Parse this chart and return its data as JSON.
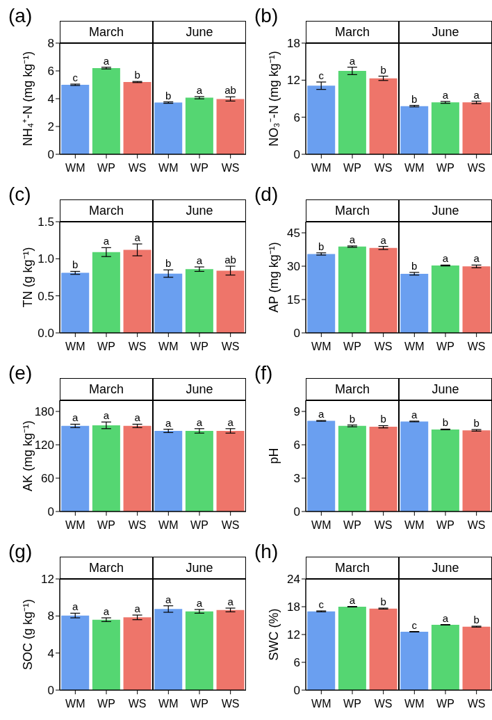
{
  "chart_data": [
    {
      "type": "bar",
      "title": "March",
      "annotations": [
        "(a)"
      ],
      "ylabel": "NH₄⁺-N (mg kg⁻¹)",
      "categories": [
        "WM",
        "WP",
        "WS"
      ],
      "values": [
        5.0,
        6.2,
        5.2
      ],
      "errors": [
        0.05,
        0.06,
        0.04
      ],
      "value_labels": [
        "c",
        "a",
        "b"
      ],
      "colors": [
        "#6a9ff0",
        "#55d672",
        "#ee756a"
      ],
      "ylim": [
        0,
        8
      ],
      "yticks": [
        0,
        2,
        4,
        6,
        8
      ]
    },
    {
      "type": "bar",
      "title": "June",
      "categories": [
        "WM",
        "WP",
        "WS"
      ],
      "values": [
        3.72,
        4.07,
        3.98
      ],
      "errors": [
        0.05,
        0.08,
        0.15
      ],
      "value_labels": [
        "b",
        "a",
        "ab"
      ],
      "colors": [
        "#6a9ff0",
        "#55d672",
        "#ee756a"
      ],
      "ylim": [
        0,
        8
      ],
      "tick_labels": "x"
    },
    {
      "type": "bar",
      "title": "March",
      "annotations": [
        "(b)"
      ],
      "ylabel": "NO₃⁻-N (mg kg⁻¹)",
      "categories": [
        "WM",
        "WP",
        "WS"
      ],
      "values": [
        11.1,
        13.5,
        12.3
      ],
      "errors": [
        0.6,
        0.6,
        0.35
      ],
      "value_labels": [
        "c",
        "a",
        "b"
      ],
      "colors": [
        "#6a9ff0",
        "#55d672",
        "#ee756a"
      ],
      "ylim": [
        0,
        18
      ],
      "yticks": [
        0,
        6,
        12,
        18
      ]
    },
    {
      "type": "bar",
      "title": "June",
      "categories": [
        "WM",
        "WP",
        "WS"
      ],
      "values": [
        7.8,
        8.4,
        8.4
      ],
      "errors": [
        0.12,
        0.15,
        0.2
      ],
      "value_labels": [
        "b",
        "a",
        "a"
      ],
      "colors": [
        "#6a9ff0",
        "#55d672",
        "#ee756a"
      ],
      "ylim": [
        0,
        18
      ],
      "tick_labels": "x"
    },
    {
      "type": "bar",
      "title": "March",
      "annotations": [
        "(c)"
      ],
      "ylabel": "TN (g kg⁻¹)",
      "categories": [
        "WM",
        "WP",
        "WS"
      ],
      "values": [
        0.81,
        1.09,
        1.12
      ],
      "errors": [
        0.02,
        0.06,
        0.08
      ],
      "value_labels": [
        "b",
        "a",
        "a"
      ],
      "colors": [
        "#6a9ff0",
        "#55d672",
        "#ee756a"
      ],
      "ylim": [
        0,
        1.5
      ],
      "yticks": [
        {
          "value": 0,
          "label": "0.0"
        },
        {
          "value": 0.5,
          "label": "0.5"
        },
        {
          "value": 1,
          "label": "1.0"
        },
        {
          "value": 1.5,
          "label": "1.5"
        }
      ]
    },
    {
      "type": "bar",
      "title": "June",
      "categories": [
        "WM",
        "WP",
        "WS"
      ],
      "values": [
        0.8,
        0.86,
        0.84
      ],
      "errors": [
        0.05,
        0.03,
        0.06
      ],
      "value_labels": [
        "b",
        "a",
        "ab"
      ],
      "colors": [
        "#6a9ff0",
        "#55d672",
        "#ee756a"
      ],
      "ylim": [
        0,
        1.5
      ],
      "tick_labels": "x"
    },
    {
      "type": "bar",
      "title": "March",
      "annotations": [
        "(d)"
      ],
      "ylabel": "AP (mg kg⁻¹)",
      "categories": [
        "WM",
        "WP",
        "WS"
      ],
      "values": [
        35.5,
        38.8,
        38.2
      ],
      "errors": [
        0.5,
        0.3,
        0.7
      ],
      "value_labels": [
        "b",
        "a",
        "a"
      ],
      "colors": [
        "#6a9ff0",
        "#55d672",
        "#ee756a"
      ],
      "ylim": [
        0,
        50
      ],
      "yticks": [
        0,
        15,
        30,
        45
      ]
    },
    {
      "type": "bar",
      "title": "June",
      "categories": [
        "WM",
        "WP",
        "WS"
      ],
      "values": [
        26.6,
        30.3,
        29.9
      ],
      "errors": [
        0.6,
        0.2,
        0.6
      ],
      "value_labels": [
        "b",
        "a",
        "a"
      ],
      "colors": [
        "#6a9ff0",
        "#55d672",
        "#ee756a"
      ],
      "ylim": [
        0,
        50
      ],
      "tick_labels": "x"
    },
    {
      "type": "bar",
      "title": "March",
      "annotations": [
        "(e)"
      ],
      "ylabel": "AK (mg kg⁻¹)",
      "categories": [
        "WM",
        "WP",
        "WS"
      ],
      "values": [
        154,
        155,
        154
      ],
      "errors": [
        3,
        6,
        3
      ],
      "value_labels": [
        "a",
        "a",
        "a"
      ],
      "colors": [
        "#6a9ff0",
        "#55d672",
        "#ee756a"
      ],
      "ylim": [
        0,
        200
      ],
      "yticks": [
        0,
        60,
        120,
        180
      ]
    },
    {
      "type": "bar",
      "title": "June",
      "categories": [
        "WM",
        "WP",
        "WS"
      ],
      "values": [
        145,
        145,
        145
      ],
      "errors": [
        3,
        4,
        4
      ],
      "value_labels": [
        "a",
        "a",
        "a"
      ],
      "colors": [
        "#6a9ff0",
        "#55d672",
        "#ee756a"
      ],
      "ylim": [
        0,
        200
      ],
      "tick_labels": "x"
    },
    {
      "type": "bar",
      "title": "March",
      "annotations": [
        "(f)"
      ],
      "ylabel": "pH",
      "categories": [
        "WM",
        "WP",
        "WS"
      ],
      "values": [
        8.15,
        7.7,
        7.62
      ],
      "errors": [
        0.03,
        0.08,
        0.1
      ],
      "value_labels": [
        "a",
        "b",
        "b"
      ],
      "colors": [
        "#6a9ff0",
        "#55d672",
        "#ee756a"
      ],
      "ylim": [
        0,
        10
      ],
      "yticks": [
        0,
        3,
        6,
        9
      ]
    },
    {
      "type": "bar",
      "title": "June",
      "categories": [
        "WM",
        "WP",
        "WS"
      ],
      "values": [
        8.1,
        7.38,
        7.3
      ],
      "errors": [
        0.03,
        0.03,
        0.07
      ],
      "value_labels": [
        "a",
        "b",
        "b"
      ],
      "colors": [
        "#6a9ff0",
        "#55d672",
        "#ee756a"
      ],
      "ylim": [
        0,
        10
      ],
      "tick_labels": "x"
    },
    {
      "type": "bar",
      "title": "March",
      "annotations": [
        "(g)"
      ],
      "ylabel": "SOC (g kg⁻¹)",
      "categories": [
        "WM",
        "WP",
        "WS"
      ],
      "values": [
        8.05,
        7.6,
        7.85
      ],
      "errors": [
        0.25,
        0.2,
        0.25
      ],
      "value_labels": [
        "a",
        "a",
        "a"
      ],
      "colors": [
        "#6a9ff0",
        "#55d672",
        "#ee756a"
      ],
      "ylim": [
        0,
        12
      ],
      "yticks": [
        0,
        4,
        8,
        12
      ]
    },
    {
      "type": "bar",
      "title": "June",
      "categories": [
        "WM",
        "WP",
        "WS"
      ],
      "values": [
        8.75,
        8.5,
        8.65
      ],
      "errors": [
        0.35,
        0.2,
        0.2
      ],
      "value_labels": [
        "a",
        "a",
        "a"
      ],
      "colors": [
        "#6a9ff0",
        "#55d672",
        "#ee756a"
      ],
      "ylim": [
        0,
        12
      ],
      "tick_labels": "x"
    },
    {
      "type": "bar",
      "title": "March",
      "annotations": [
        "(h)"
      ],
      "ylabel": "SWC (%)",
      "categories": [
        "WM",
        "WP",
        "WS"
      ],
      "values": [
        17.0,
        18.0,
        17.6
      ],
      "errors": [
        0.1,
        0.05,
        0.1
      ],
      "value_labels": [
        "c",
        "a",
        "b"
      ],
      "colors": [
        "#6a9ff0",
        "#55d672",
        "#ee756a"
      ],
      "ylim": [
        0,
        24
      ],
      "yticks": [
        0,
        6,
        12,
        18,
        24
      ]
    },
    {
      "type": "bar",
      "title": "June",
      "categories": [
        "WM",
        "WP",
        "WS"
      ],
      "values": [
        12.6,
        14.1,
        13.7
      ],
      "errors": [
        0.05,
        0.05,
        0.1
      ],
      "value_labels": [
        "c",
        "a",
        "b"
      ],
      "colors": [
        "#6a9ff0",
        "#55d672",
        "#ee756a"
      ],
      "ylim": [
        0,
        24
      ],
      "tick_labels": "x"
    }
  ]
}
